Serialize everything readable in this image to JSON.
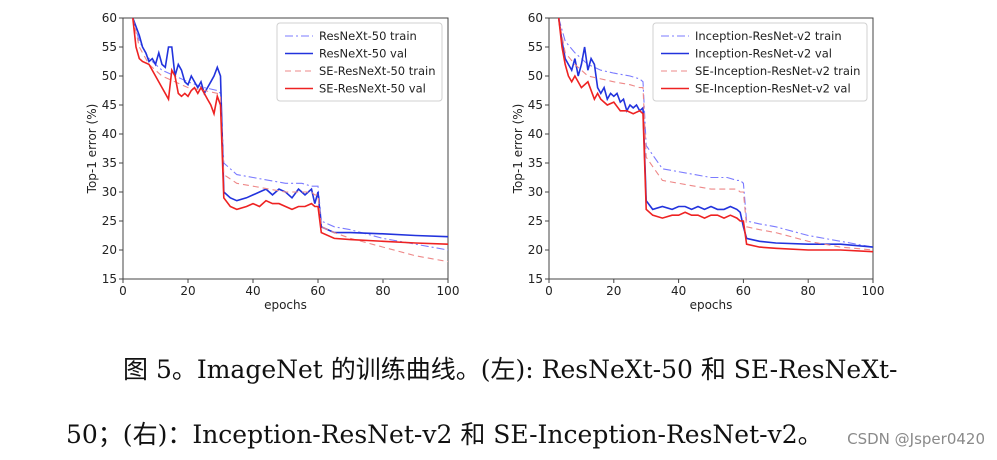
{
  "chart_data": [
    {
      "type": "line",
      "title": "",
      "xlabel": "epochs",
      "ylabel": "Top-1 error (%)",
      "xlim": [
        0,
        100
      ],
      "ylim": [
        15,
        60
      ],
      "xticks": [
        0,
        20,
        40,
        60,
        80,
        100
      ],
      "yticks": [
        15,
        20,
        25,
        30,
        35,
        40,
        45,
        50,
        55,
        60
      ],
      "legend": "top-right",
      "series": [
        {
          "name": "ResNeXt-50 train",
          "color": "#7b7bff",
          "style": "dashdot",
          "x": [
            3,
            5,
            8,
            12,
            16,
            20,
            25,
            29,
            30,
            31,
            35,
            40,
            45,
            50,
            55,
            58,
            59,
            60,
            61,
            65,
            70,
            80,
            90,
            100
          ],
          "y": [
            60,
            56,
            53,
            51,
            50,
            49,
            48,
            47.5,
            47,
            35,
            33,
            32.5,
            32,
            31.5,
            31.5,
            31,
            31,
            31,
            25,
            24,
            23.5,
            22,
            21,
            20
          ]
        },
        {
          "name": "ResNeXt-50 val",
          "color": "#2233dd",
          "style": "solid",
          "x": [
            3,
            5,
            6,
            7,
            8,
            9,
            10,
            11,
            12,
            13,
            14,
            15,
            16,
            17,
            18,
            19,
            20,
            21,
            22,
            23,
            24,
            25,
            26,
            27,
            28,
            29,
            30,
            31,
            33,
            35,
            38,
            40,
            42,
            44,
            46,
            48,
            50,
            52,
            54,
            56,
            58,
            59,
            60,
            61,
            65,
            70,
            80,
            90,
            100
          ],
          "y": [
            60,
            57,
            55,
            54,
            52.5,
            53,
            52,
            54,
            52,
            51.5,
            55,
            55,
            50,
            52,
            51,
            49,
            48.5,
            50,
            49,
            48,
            49,
            47,
            48,
            49,
            50,
            51.5,
            50,
            30,
            29,
            28.5,
            29,
            29.5,
            30,
            30.5,
            29.5,
            30.5,
            30,
            29,
            30.5,
            29.5,
            30.5,
            28,
            30,
            24,
            23,
            23,
            22.8,
            22.5,
            22.3
          ]
        },
        {
          "name": "SE-ResNeXt-50 train",
          "color": "#ee8888",
          "style": "dashed",
          "x": [
            3,
            5,
            8,
            12,
            16,
            20,
            25,
            29,
            30,
            31,
            35,
            40,
            45,
            50,
            55,
            58,
            59,
            60,
            61,
            65,
            70,
            80,
            90,
            100
          ],
          "y": [
            60,
            55,
            52,
            50,
            49,
            48,
            47.5,
            47,
            46.5,
            33,
            31.5,
            31,
            30.5,
            30,
            30,
            30,
            29.5,
            29.5,
            24,
            23,
            22,
            20.5,
            19,
            18
          ]
        },
        {
          "name": "SE-ResNeXt-50 val",
          "color": "#ee2222",
          "style": "solid",
          "x": [
            3,
            4,
            5,
            6,
            8,
            10,
            12,
            14,
            15,
            16,
            17,
            18,
            19,
            20,
            21,
            22,
            23,
            24,
            25,
            26,
            27,
            28,
            29,
            30,
            31,
            33,
            35,
            38,
            40,
            42,
            44,
            46,
            48,
            50,
            52,
            54,
            56,
            58,
            59,
            60,
            61,
            65,
            70,
            80,
            90,
            100
          ],
          "y": [
            60,
            55,
            53,
            52.5,
            52,
            50,
            48,
            46,
            51,
            50,
            47,
            46.5,
            47,
            46.5,
            47.5,
            48,
            47,
            48,
            47,
            46,
            45,
            43.5,
            46.5,
            45,
            29,
            27.5,
            27,
            27.5,
            28,
            27.5,
            28.5,
            28,
            28,
            27.5,
            27,
            27.5,
            27.5,
            28,
            27.5,
            27.5,
            23,
            22,
            21.8,
            21.5,
            21.2,
            21
          ]
        }
      ]
    },
    {
      "type": "line",
      "title": "",
      "xlabel": "epochs",
      "ylabel": "Top-1 error (%)",
      "xlim": [
        0,
        100
      ],
      "ylim": [
        15,
        60
      ],
      "xticks": [
        0,
        20,
        40,
        60,
        80,
        100
      ],
      "yticks": [
        15,
        20,
        25,
        30,
        35,
        40,
        45,
        50,
        55,
        60
      ],
      "legend": "top-right",
      "series": [
        {
          "name": "Inception-ResNet-v2 train",
          "color": "#7b7bff",
          "style": "dashdot",
          "x": [
            3,
            5,
            8,
            12,
            16,
            20,
            25,
            28,
            29,
            30,
            35,
            40,
            45,
            50,
            55,
            58,
            59,
            60,
            61,
            65,
            70,
            80,
            90,
            100
          ],
          "y": [
            60,
            56,
            54,
            52,
            51,
            50.5,
            50,
            49.5,
            49,
            38,
            34,
            33.5,
            33,
            32.5,
            32.5,
            32,
            32,
            31.5,
            25,
            24.5,
            24,
            22.5,
            21.5,
            20.5
          ]
        },
        {
          "name": "Inception-ResNet-v2 val",
          "color": "#2233dd",
          "style": "solid",
          "x": [
            3,
            4,
            5,
            6,
            7,
            8,
            9,
            10,
            11,
            12,
            13,
            14,
            15,
            16,
            17,
            18,
            19,
            20,
            21,
            22,
            23,
            24,
            25,
            26,
            27,
            28,
            29,
            30,
            32,
            35,
            38,
            40,
            42,
            44,
            46,
            48,
            50,
            52,
            54,
            56,
            58,
            59,
            60,
            61,
            65,
            70,
            80,
            90,
            100
          ],
          "y": [
            60,
            56,
            53,
            52,
            51,
            53,
            50,
            52,
            55,
            51,
            53,
            52,
            48,
            47,
            48,
            46,
            47,
            46.5,
            47,
            45.5,
            46,
            44,
            45,
            44.5,
            45,
            44,
            44.5,
            28.5,
            27,
            27.5,
            27,
            27.5,
            27.5,
            27,
            27.5,
            27,
            27.5,
            27,
            27,
            27.5,
            27,
            26.5,
            24,
            22,
            21.5,
            21.2,
            21,
            21,
            20.5
          ]
        },
        {
          "name": "SE-Inception-ResNet-v2 train",
          "color": "#ee8888",
          "style": "dashed",
          "x": [
            3,
            5,
            8,
            12,
            16,
            20,
            25,
            28,
            29,
            30,
            35,
            40,
            45,
            50,
            55,
            58,
            59,
            60,
            61,
            65,
            70,
            80,
            90,
            100
          ],
          "y": [
            60,
            54,
            52,
            50,
            49.5,
            49,
            48.5,
            48,
            48,
            36,
            32,
            31.5,
            31,
            30.5,
            30.5,
            30.5,
            30,
            30,
            24,
            23.5,
            23,
            21.5,
            20.5,
            20
          ]
        },
        {
          "name": "SE-Inception-ResNet-v2 val",
          "color": "#ee2222",
          "style": "solid",
          "x": [
            3,
            4,
            5,
            6,
            7,
            8,
            10,
            12,
            14,
            15,
            16,
            18,
            20,
            22,
            24,
            26,
            28,
            29,
            30,
            32,
            35,
            38,
            40,
            42,
            44,
            46,
            48,
            50,
            52,
            54,
            56,
            58,
            59,
            60,
            61,
            65,
            70,
            80,
            90,
            100
          ],
          "y": [
            60,
            55,
            52,
            50,
            49,
            50,
            48,
            49,
            46,
            47,
            46,
            45,
            45.5,
            44,
            44,
            43.5,
            44,
            43.5,
            27,
            26,
            25.5,
            26,
            26,
            26.5,
            26,
            26,
            25.5,
            26,
            26,
            25.5,
            26,
            25.5,
            25,
            25,
            21,
            20.5,
            20.3,
            20,
            20,
            19.7
          ]
        }
      ]
    }
  ],
  "caption": {
    "line1": "图 5。ImageNet 的训练曲线。(左): ResNeXt-50 和 SE-ResNeXt-",
    "line2": "50；(右)：Inception-ResNet-v2 和 SE-Inception-ResNet-v2。"
  },
  "watermark": "CSDN @Jsper0420"
}
